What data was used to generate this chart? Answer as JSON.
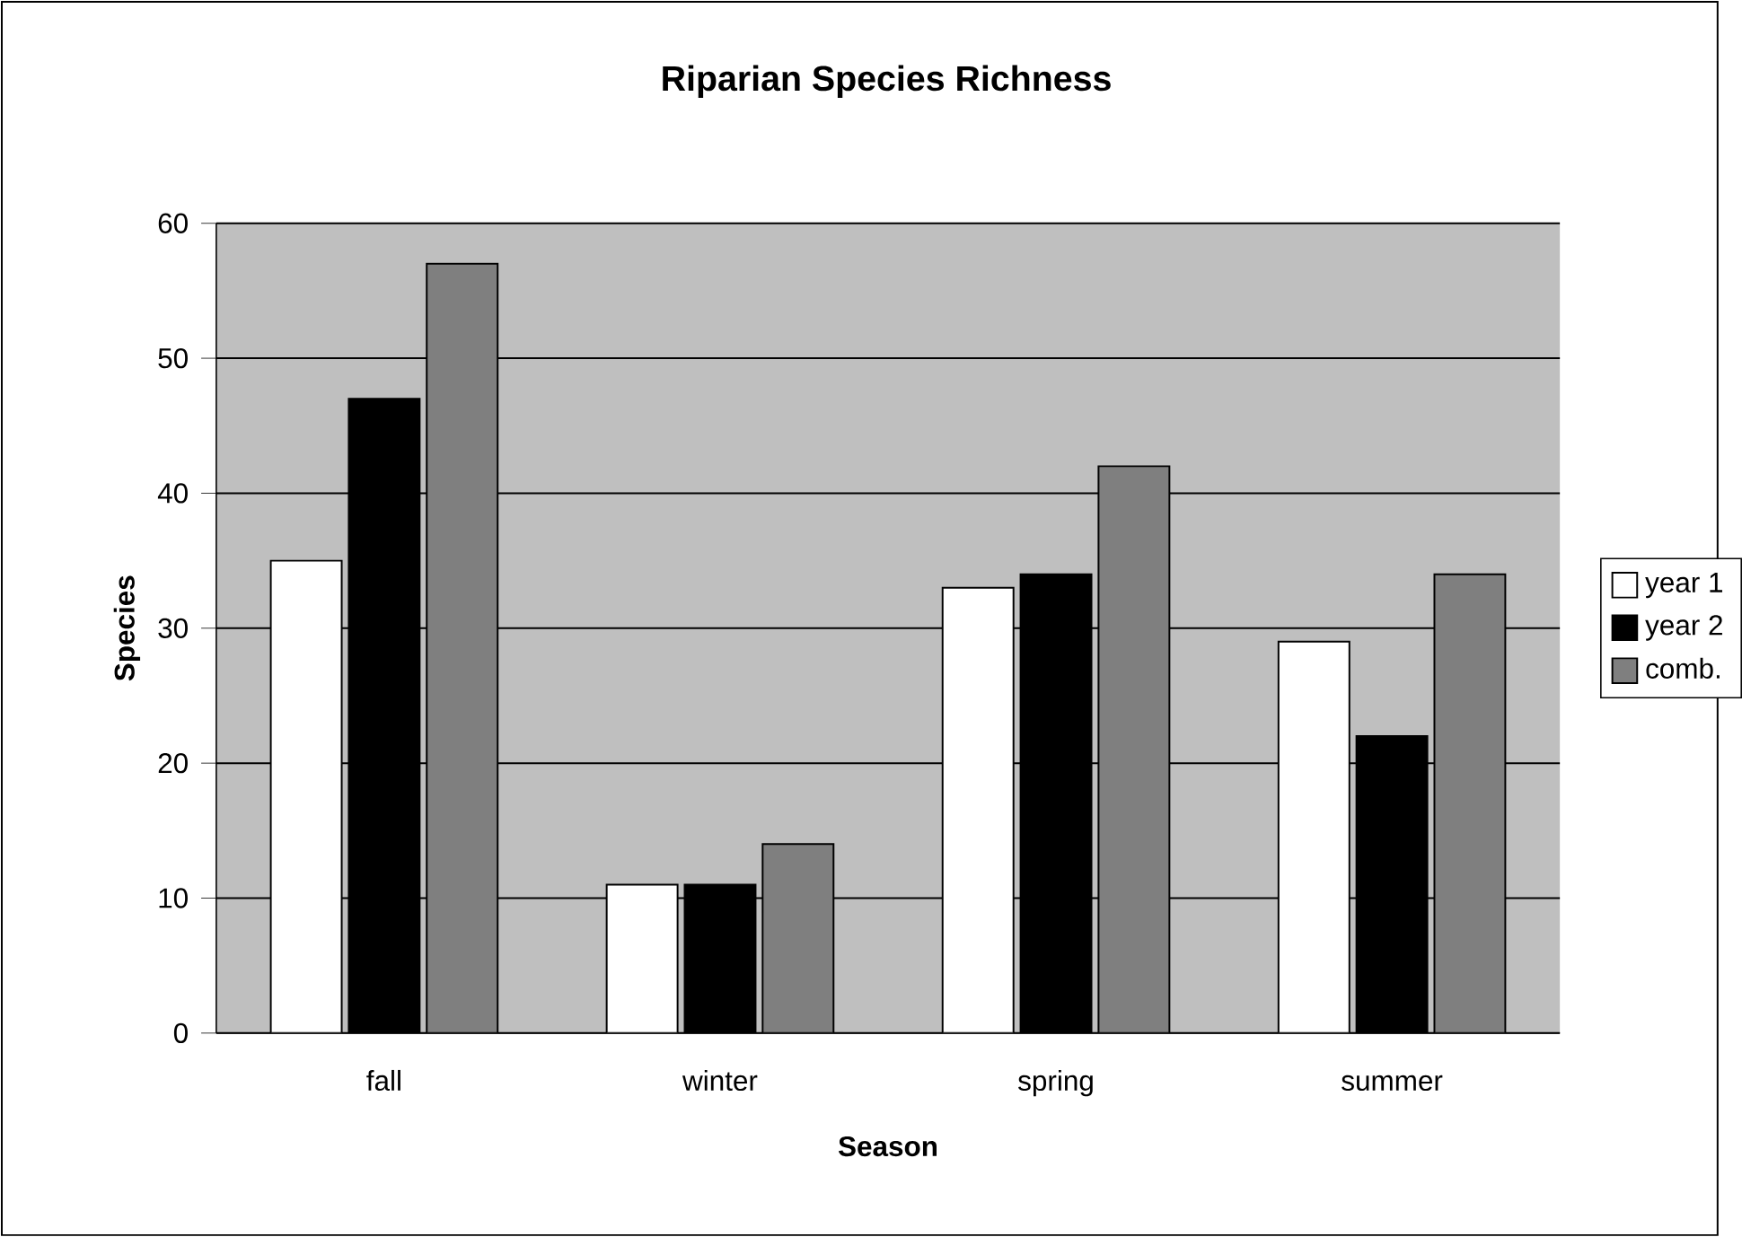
{
  "chart_data": {
    "type": "bar",
    "title": "Riparian Species Richness",
    "xlabel": "Season",
    "ylabel": "Species",
    "categories": [
      "fall",
      "winter",
      "spring",
      "summer"
    ],
    "series": [
      {
        "name": "year 1",
        "color": "#ffffff",
        "values": [
          35,
          11,
          33,
          29
        ]
      },
      {
        "name": "year 2",
        "color": "#000000",
        "values": [
          47,
          11,
          34,
          22
        ]
      },
      {
        "name": "comb.",
        "color": "#7f7f7f",
        "values": [
          57,
          14,
          42,
          34
        ]
      }
    ],
    "ylim": [
      0,
      60
    ],
    "yticks": [
      0,
      10,
      20,
      30,
      40,
      50,
      60
    ],
    "grid": "y",
    "legend": "right"
  }
}
